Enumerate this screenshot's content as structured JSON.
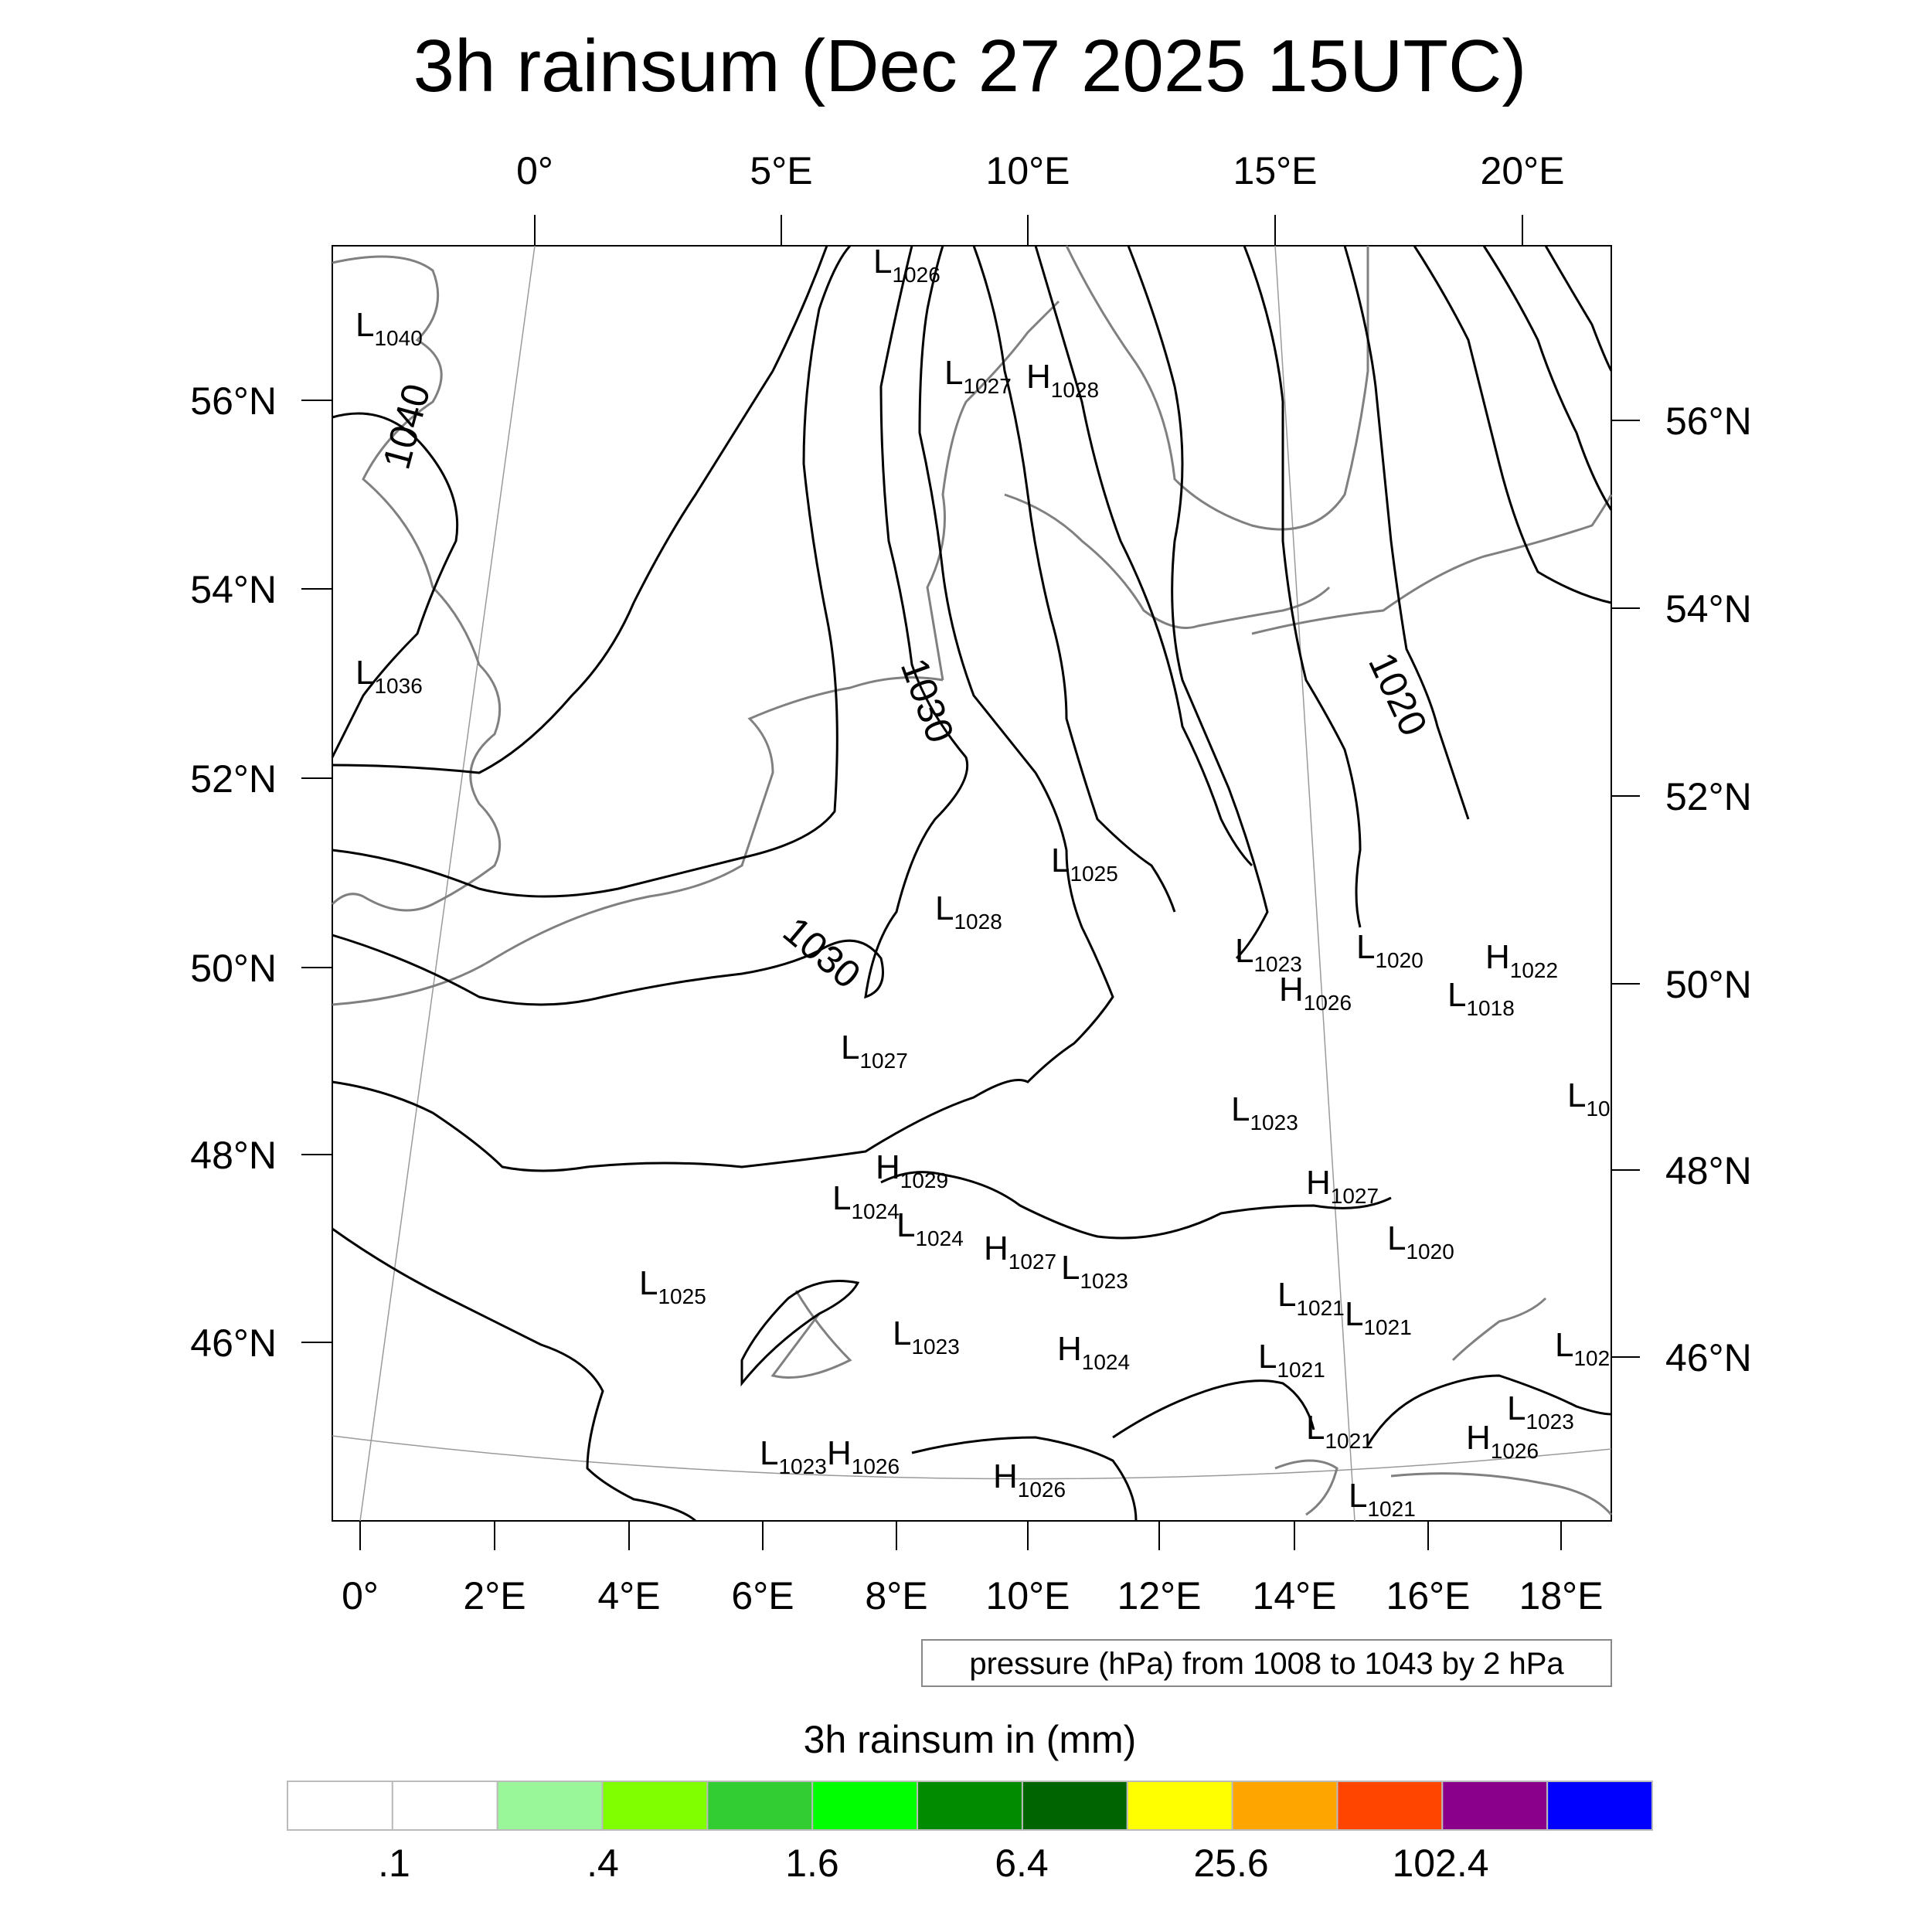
{
  "title": "3h rainsum (Dec 27 2025 15UTC)",
  "top_lon_labels": [
    "0°",
    "5°E",
    "10°E",
    "15°E",
    "20°E"
  ],
  "bottom_lon_labels": [
    "0°",
    "2°E",
    "4°E",
    "6°E",
    "8°E",
    "10°E",
    "12°E",
    "14°E",
    "16°E",
    "18°E"
  ],
  "left_lat_labels": [
    "56°N",
    "54°N",
    "52°N",
    "50°N",
    "48°N",
    "46°N"
  ],
  "right_lat_labels": [
    "56°N",
    "54°N",
    "52°N",
    "50°N",
    "48°N",
    "46°N"
  ],
  "contour_labels": [
    "1040",
    "1030",
    "1030",
    "1020"
  ],
  "pressure_centers": [
    {
      "t": "L",
      "v": "1026"
    },
    {
      "t": "L",
      "v": "1040"
    },
    {
      "t": "L",
      "v": "1027"
    },
    {
      "t": "H",
      "v": "1028"
    },
    {
      "t": "L",
      "v": "1036"
    },
    {
      "t": "L",
      "v": "1025"
    },
    {
      "t": "L",
      "v": "1028"
    },
    {
      "t": "L",
      "v": "1023"
    },
    {
      "t": "L",
      "v": "1020"
    },
    {
      "t": "H",
      "v": "1022"
    },
    {
      "t": "H",
      "v": "1026"
    },
    {
      "t": "L",
      "v": "1018"
    },
    {
      "t": "L",
      "v": "1027"
    },
    {
      "t": "L",
      "v": "1023"
    },
    {
      "t": "L",
      "v": "10"
    },
    {
      "t": "H",
      "v": "1029"
    },
    {
      "t": "H",
      "v": "1027"
    },
    {
      "t": "L",
      "v": "1024"
    },
    {
      "t": "L",
      "v": "1024"
    },
    {
      "t": "H",
      "v": "1027"
    },
    {
      "t": "L",
      "v": "1023"
    },
    {
      "t": "L",
      "v": "1020"
    },
    {
      "t": "L",
      "v": "1025"
    },
    {
      "t": "L",
      "v": "1021"
    },
    {
      "t": "L",
      "v": "1021"
    },
    {
      "t": "L",
      "v": "1023"
    },
    {
      "t": "H",
      "v": "1024"
    },
    {
      "t": "L",
      "v": "1021"
    },
    {
      "t": "L",
      "v": "102"
    },
    {
      "t": "L",
      "v": "1023"
    },
    {
      "t": "L",
      "v": "1021"
    },
    {
      "t": "L",
      "v": "1023"
    },
    {
      "t": "H",
      "v": "1026"
    },
    {
      "t": "H",
      "v": "1026"
    },
    {
      "t": "H",
      "v": "1026"
    },
    {
      "t": "L",
      "v": "1021"
    }
  ],
  "pressure_note": "pressure (hPa) from 1008 to 1043 by 2 hPa",
  "colorbar": {
    "title": "3h rainsum in (mm)",
    "colors": [
      "#ffffff",
      "#ffffff",
      "#99f699",
      "#80ff00",
      "#32cd32",
      "#00ff00",
      "#008b00",
      "#006400",
      "#ffff00",
      "#ffa500",
      "#ff4500",
      "#8b008b",
      "#0000ff"
    ],
    "labels": [
      ".1",
      ".4",
      "1.6",
      "6.4",
      "25.6",
      "102.4"
    ]
  }
}
